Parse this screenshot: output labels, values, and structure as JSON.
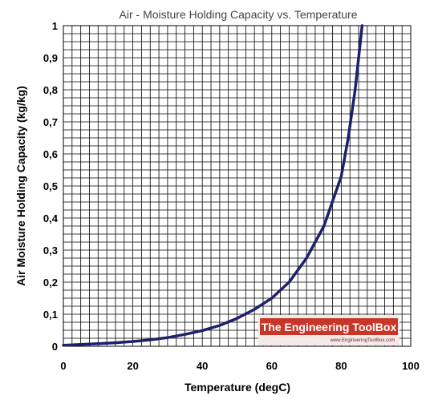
{
  "chart_data": {
    "type": "line",
    "title": "Air - Moisture Holding Capacity vs. Temperature",
    "xlabel": "Temperature (degC)",
    "ylabel": "Air Moisture Holding Capacity (kg/kg)",
    "xlim": [
      0,
      100
    ],
    "ylim": [
      0,
      1
    ],
    "x_ticks": [
      "0",
      "20",
      "40",
      "60",
      "80",
      "100"
    ],
    "y_ticks": [
      "0",
      "0,1",
      "0,2",
      "0,3",
      "0,4",
      "0,5",
      "0,6",
      "0,7",
      "0,8",
      "0,9",
      "1"
    ],
    "x_tick_values": [
      0,
      20,
      40,
      60,
      80,
      100
    ],
    "y_tick_values": [
      0,
      0.1,
      0.2,
      0.3,
      0.4,
      0.5,
      0.6,
      0.7,
      0.8,
      0.9,
      1.0
    ],
    "minor_grid_x_step": 2.5,
    "minor_grid_y_step": 0.025,
    "grid": true,
    "legend": "none",
    "line_color": "#1f1f6b",
    "series": [
      {
        "x": [
          0,
          5,
          10,
          15,
          20,
          25,
          30,
          35,
          40,
          45,
          50,
          55,
          60,
          65,
          70,
          75,
          80,
          82,
          84,
          86
        ],
        "y": [
          0.003,
          0.0055,
          0.008,
          0.011,
          0.015,
          0.02,
          0.027,
          0.037,
          0.049,
          0.065,
          0.087,
          0.115,
          0.15,
          0.2,
          0.275,
          0.375,
          0.53,
          0.65,
          0.8,
          1.0
        ]
      }
    ]
  },
  "watermark": {
    "title": "The Engineering ToolBox",
    "url": "www.EngineeringToolBox.com",
    "bg_color": "#c8362a"
  }
}
